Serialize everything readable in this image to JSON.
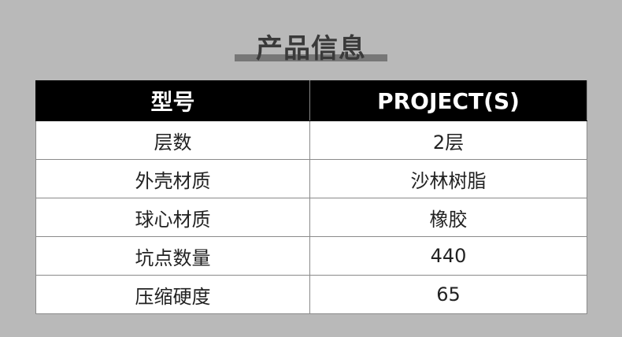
{
  "title": "产品信息",
  "table": {
    "header": [
      "型号",
      "PROJECT(S)"
    ],
    "rows": [
      [
        "层数",
        "2层"
      ],
      [
        "外壳材质",
        "沙林树脂"
      ],
      [
        "球心材质",
        "橡胶"
      ],
      [
        "坑点数量",
        "440"
      ],
      [
        "压缩硬度",
        "65"
      ]
    ]
  },
  "colors": {
    "background": "#b9b9b9",
    "header_bg": "#000000",
    "title": "#3a3a3a",
    "title_bar": "#777777"
  }
}
